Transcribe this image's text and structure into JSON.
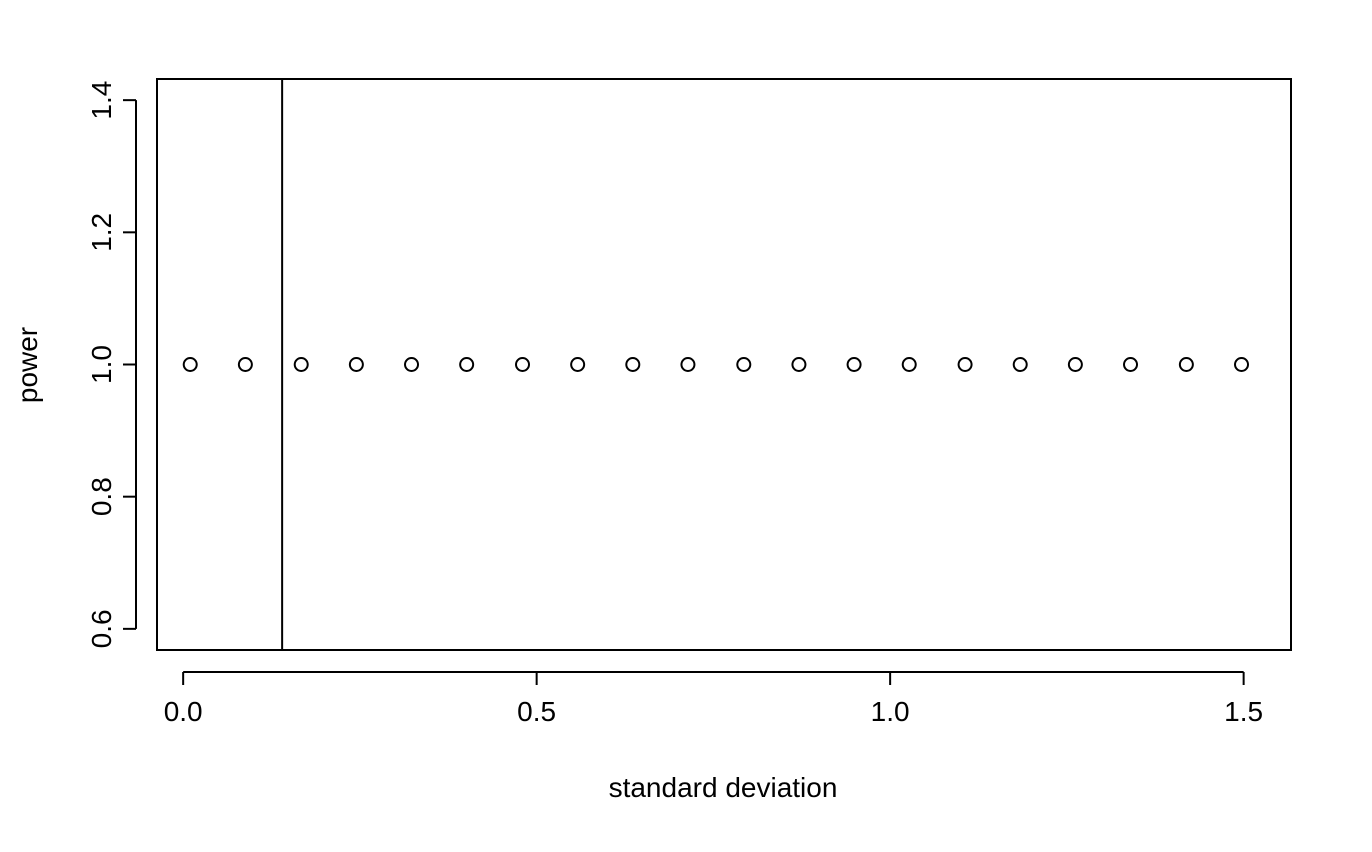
{
  "chart_data": {
    "type": "scatter",
    "title": "",
    "xlabel": "standard deviation",
    "ylabel": "power",
    "xlim": [
      -0.037,
      1.567
    ],
    "ylim": [
      0.568,
      1.432
    ],
    "x_ticks": [
      0.0,
      0.5,
      1.0,
      1.5
    ],
    "x_tick_labels": [
      "0.0",
      "0.5",
      "1.0",
      "1.5"
    ],
    "y_ticks": [
      0.6,
      0.8,
      1.0,
      1.2,
      1.4
    ],
    "y_tick_labels": [
      "0.6",
      "0.8",
      "1.0",
      "1.2",
      "1.4"
    ],
    "grid": false,
    "legend": "none",
    "marker": "open-circle",
    "marker_color": "#000000",
    "vline": {
      "x": 0.14,
      "color": "#000000"
    },
    "series": [
      {
        "x": [
          0.01,
          0.088,
          0.167,
          0.245,
          0.323,
          0.401,
          0.48,
          0.558,
          0.636,
          0.714,
          0.793,
          0.871,
          0.949,
          1.027,
          1.106,
          1.184,
          1.262,
          1.34,
          1.419,
          1.497
        ],
        "y": [
          1,
          1,
          1,
          1,
          1,
          1,
          1,
          1,
          1,
          1,
          1,
          1,
          1,
          1,
          1,
          1,
          1,
          1,
          1,
          1
        ]
      }
    ]
  }
}
